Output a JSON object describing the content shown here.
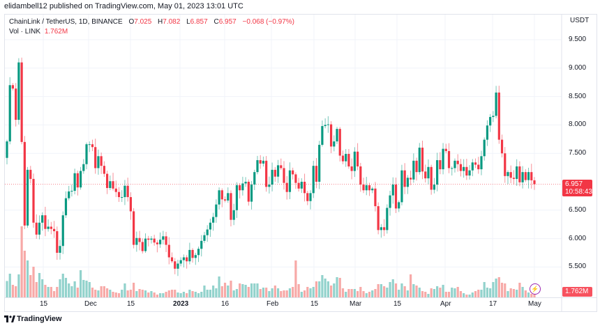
{
  "publisher_line": "elidambell12 published on TradingView.com, May 01, 2023 13:01 UTC",
  "legend": {
    "symbol": "ChainLink / TetherUS, 1D, BINANCE",
    "o_label": "O",
    "o_value": "7.025",
    "h_label": "H",
    "h_value": "7.082",
    "l_label": "L",
    "l_value": "6.857",
    "c_label": "C",
    "c_value": "6.957",
    "change": "−0.068 (−0.97%)",
    "vol_label": "Vol · LINK",
    "vol_value": "1.762M"
  },
  "price_axis": {
    "currency": "USDT",
    "ticks": [
      "9.500",
      "9.000",
      "8.500",
      "8.000",
      "7.500",
      "6.500",
      "6.000",
      "5.500"
    ],
    "tick_values": [
      9.5,
      9.0,
      8.5,
      8.0,
      7.5,
      6.5,
      6.0,
      5.5
    ],
    "last_price": "6.957",
    "countdown": "10:58:43",
    "last_volume": "1.762M"
  },
  "time_axis": [
    "15",
    "Dec",
    "15",
    "2023",
    "16",
    "Feb",
    "15",
    "Mar",
    "15",
    "Apr",
    "17",
    "May"
  ],
  "footer": {
    "brand": "TradingView"
  },
  "colors": {
    "up": "#089981",
    "down": "#f23645",
    "up_vol": "#92d2cc",
    "down_vol": "#f7a9a7",
    "grid": "#f0f3fa",
    "accent": "#9c27b0"
  },
  "chart_data": {
    "type": "candlestick",
    "symbol": "LINKUSDT",
    "interval": "1D",
    "ylim": [
      5.0,
      9.8
    ],
    "first_open": 7.42,
    "closes": [
      7.71,
      8.7,
      8.64,
      8.09,
      9.1,
      7.7,
      6.23,
      7.21,
      7.05,
      6.28,
      6.07,
      6.28,
      6.41,
      6.17,
      6.21,
      6.17,
      6.13,
      5.75,
      5.87,
      6.41,
      6.71,
      6.83,
      6.84,
      7.15,
      6.9,
      7.19,
      7.31,
      7.66,
      7.66,
      7.61,
      7.24,
      7.45,
      7.28,
      7.14,
      6.89,
      7.01,
      6.88,
      6.82,
      6.73,
      6.73,
      6.93,
      6.73,
      6.48,
      5.89,
      6.01,
      5.94,
      5.78,
      6.0,
      5.98,
      6.0,
      5.93,
      5.9,
      5.98,
      6.04,
      5.89,
      5.67,
      5.6,
      5.47,
      5.56,
      5.62,
      5.67,
      5.6,
      5.8,
      5.66,
      5.71,
      5.82,
      5.96,
      6.06,
      6.16,
      6.28,
      6.38,
      6.6,
      6.85,
      6.69,
      6.67,
      6.8,
      6.33,
      6.5,
      6.94,
      6.85,
      6.97,
      7.0,
      6.65,
      6.95,
      7.17,
      7.38,
      7.32,
      7.37,
      6.91,
      6.95,
      7.21,
      7.09,
      7.29,
      7.24,
      6.98,
      6.82,
      7.2,
      7.13,
      6.98,
      6.88,
      7.0,
      6.8,
      6.66,
      6.8,
      7.28,
      7.0,
      7.65,
      7.98,
      8.0,
      8.01,
      7.62,
      7.71,
      7.93,
      7.46,
      7.36,
      7.49,
      7.27,
      7.19,
      7.53,
      7.27,
      6.95,
      6.85,
      6.94,
      6.85,
      6.88,
      6.57,
      6.15,
      6.2,
      6.15,
      6.54,
      6.76,
      6.95,
      6.53,
      6.64,
      7.2,
      6.91,
      7.07,
      7.04,
      7.37,
      7.17,
      7.6,
      7.18,
      7.06,
      7.26,
      6.86,
      6.95,
      7.38,
      7.22,
      7.58,
      7.54,
      7.24,
      7.24,
      7.37,
      7.31,
      7.19,
      7.26,
      7.11,
      7.2,
      7.34,
      7.3,
      7.22,
      7.45,
      7.74,
      7.99,
      8.14,
      8.16,
      8.57,
      7.74,
      7.5,
      7.1,
      7.17,
      7.07,
      7.05,
      7.27,
      6.99,
      7.17,
      7.03,
      7.17,
      7.025,
      6.957
    ],
    "volumes_m": [
      4.7,
      6.8,
      3.6,
      3.2,
      6.6,
      20.4,
      13.4,
      10.6,
      6.4,
      8.8,
      4.4,
      7.0,
      5.2,
      3.6,
      3.0,
      3.0,
      1.8,
      3.0,
      5.2,
      6.8,
      5.6,
      4.0,
      3.2,
      4.6,
      2.8,
      7.8,
      5.0,
      4.8,
      4.4,
      2.8,
      2.2,
      2.0,
      3.2,
      3.2,
      2.6,
      2.2,
      1.6,
      1.4,
      1.2,
      2.2,
      4.0,
      2.0,
      2.2,
      4.2,
      1.8,
      2.4,
      2.2,
      2.0,
      1.4,
      1.8,
      1.4,
      0.8,
      1.2,
      1.2,
      1.6,
      2.0,
      2.2,
      2.2,
      1.4,
      1.2,
      1.6,
      1.2,
      2.2,
      1.8,
      1.6,
      1.2,
      1.6,
      3.4,
      2.2,
      2.2,
      3.4,
      2.6,
      6.0,
      3.2,
      4.2,
      3.4,
      4.8,
      2.0,
      2.4,
      4.0,
      3.8,
      3.6,
      3.0,
      4.0,
      4.0,
      4.0,
      2.4,
      2.8,
      2.8,
      1.8,
      2.6,
      3.4,
      2.6,
      1.8,
      2.0,
      2.0,
      2.6,
      3.0,
      10.6,
      3.8,
      1.6,
      2.0,
      3.0,
      2.6,
      3.0,
      4.6,
      4.6,
      6.4,
      5.4,
      4.6,
      3.4,
      4.0,
      5.8,
      5.6,
      2.6,
      1.6,
      2.4,
      2.4,
      2.4,
      1.8,
      3.0,
      1.8,
      1.2,
      1.6,
      2.0,
      2.4,
      3.8,
      3.8,
      3.2,
      2.8,
      4.4,
      5.2,
      4.0,
      2.2,
      4.0,
      3.2,
      2.0,
      6.6,
      3.8,
      3.4,
      2.8,
      1.8,
      1.6,
      1.0,
      2.6,
      2.4,
      3.2,
      2.8,
      3.6,
      1.6,
      1.6,
      2.8,
      2.6,
      3.0,
      1.8,
      1.2,
      0.8,
      0.8,
      1.4,
      1.8,
      2.2,
      2.2,
      4.4,
      2.8,
      2.6,
      4.4,
      5.4,
      5.8,
      4.2,
      4.0,
      1.8,
      2.6,
      2.4,
      2.2,
      4.2,
      3.0,
      2.0,
      1.4,
      1.0,
      1.762
    ],
    "last": {
      "open": 7.025,
      "high": 7.082,
      "low": 6.857,
      "close": 6.957
    }
  }
}
